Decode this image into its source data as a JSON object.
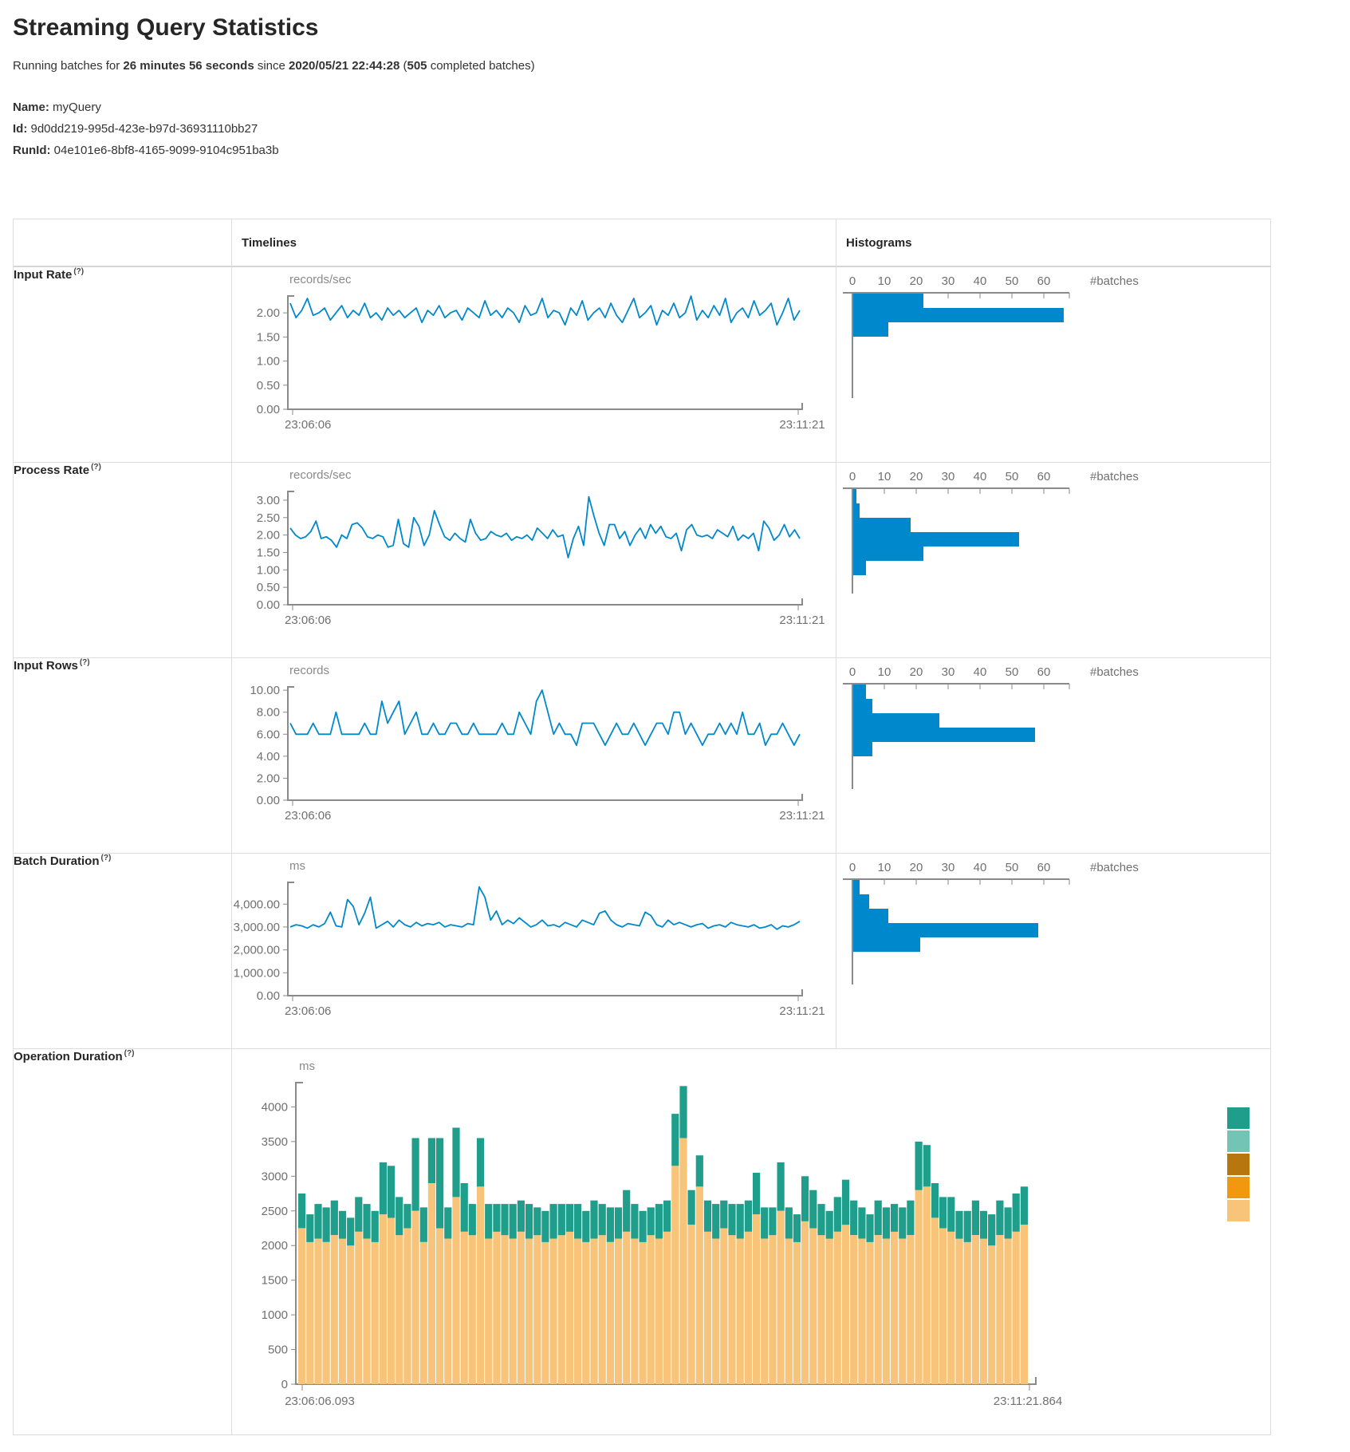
{
  "page": {
    "title": "Streaming Query Statistics",
    "subtitle": {
      "p1": "Running batches for ",
      "b1": "26 minutes 56 seconds",
      "p2": " since ",
      "b2": "2020/05/21 22:44:28",
      "p3": " (",
      "b3": "505",
      "p4": " completed batches)"
    },
    "meta": {
      "name_label": "Name:",
      "name": " myQuery",
      "id_label": "Id:",
      "id": " 9d0dd219-995d-423e-b97d-36931110bb27",
      "runid_label": "RunId:",
      "runid": " 04e101e6-8bf8-4165-9099-9104c951ba3b"
    }
  },
  "table": {
    "headers": {
      "timelines": "Timelines",
      "histograms": "Histograms"
    },
    "rows": [
      {
        "label": "Input Rate",
        "help": "(?)"
      },
      {
        "label": "Process Rate",
        "help": "(?)"
      },
      {
        "label": "Input Rows",
        "help": "(?)"
      },
      {
        "label": "Batch Duration",
        "help": "(?)"
      },
      {
        "label": "Operation Duration",
        "help": "(?)"
      }
    ]
  },
  "colors": {
    "line_blue": "#0088CC",
    "hist_blue": "#0088CC",
    "axis": "#8A8A8A",
    "tick_label": "#707070",
    "border": "#DDDDDD",
    "legend": [
      "#1E9E8B",
      "#74C4B5",
      "#B8770E",
      "#F2980F",
      "#F7C479"
    ]
  },
  "chart_data": [
    {
      "row": "Input Rate",
      "timeline": {
        "type": "line",
        "unit": "records/sec",
        "x_start": "23:06:06",
        "x_end": "23:11:21",
        "yticks": [
          0,
          0.5,
          1,
          1.5,
          2
        ],
        "fmt": "2dp",
        "ymax": 2.35,
        "values": [
          2.2,
          1.9,
          2.05,
          2.3,
          1.95,
          2.0,
          2.1,
          1.85,
          2.0,
          2.15,
          1.9,
          2.05,
          1.95,
          2.2,
          1.9,
          2.0,
          1.85,
          2.1,
          1.95,
          2.05,
          1.9,
          2.0,
          2.1,
          1.8,
          2.05,
          1.95,
          2.15,
          1.9,
          2.0,
          2.05,
          1.85,
          2.1,
          2.0,
          1.9,
          2.25,
          1.95,
          2.05,
          1.9,
          2.1,
          2.0,
          1.8,
          2.15,
          1.95,
          2.0,
          2.3,
          1.9,
          2.05,
          2.0,
          1.75,
          2.1,
          1.95,
          2.25,
          1.85,
          2.0,
          2.1,
          1.9,
          2.2,
          1.95,
          1.8,
          2.05,
          2.3,
          1.9,
          2.0,
          2.15,
          1.75,
          2.05,
          1.95,
          2.2,
          1.9,
          2.0,
          2.35,
          1.85,
          2.05,
          1.9,
          2.15,
          1.95,
          2.3,
          1.8,
          2.0,
          2.1,
          1.9,
          2.25,
          1.95,
          2.05,
          2.2,
          1.75,
          2.0,
          2.3,
          1.85,
          2.05
        ]
      },
      "histogram": {
        "type": "bar",
        "orientation": "horizontal",
        "xlabel": "#batches",
        "xticks": [
          0,
          10,
          20,
          30,
          40,
          50,
          60
        ],
        "xmax": 70,
        "values": [
          22,
          66,
          11
        ]
      }
    },
    {
      "row": "Process Rate",
      "timeline": {
        "type": "line",
        "unit": "records/sec",
        "x_start": "23:06:06",
        "x_end": "23:11:21",
        "yticks": [
          0,
          0.5,
          1,
          1.5,
          2,
          2.5,
          3
        ],
        "fmt": "2dp",
        "ymax": 3.25,
        "values": [
          2.2,
          2.0,
          1.9,
          1.95,
          2.1,
          2.4,
          1.9,
          1.95,
          1.85,
          1.65,
          2.0,
          1.9,
          2.3,
          2.35,
          2.2,
          1.95,
          1.9,
          2.0,
          1.95,
          1.65,
          1.7,
          2.45,
          1.75,
          1.65,
          2.5,
          2.25,
          1.7,
          2.0,
          2.7,
          2.3,
          1.95,
          1.85,
          2.05,
          1.9,
          1.8,
          2.45,
          2.05,
          1.85,
          1.9,
          2.1,
          2.0,
          1.95,
          2.05,
          1.85,
          1.95,
          1.9,
          2.0,
          1.85,
          2.2,
          2.05,
          1.9,
          2.15,
          1.95,
          2.0,
          1.35,
          1.9,
          2.25,
          1.7,
          3.1,
          2.55,
          2.05,
          1.7,
          2.3,
          2.3,
          1.9,
          2.1,
          1.7,
          2.0,
          2.2,
          1.9,
          2.3,
          2.05,
          2.25,
          1.95,
          1.9,
          2.05,
          1.55,
          2.15,
          2.3,
          2.0,
          1.95,
          2.0,
          1.9,
          2.15,
          2.05,
          1.95,
          2.25,
          1.85,
          2.0,
          1.9,
          2.05,
          1.55,
          2.4,
          2.2,
          1.85,
          2.0,
          2.3,
          1.95,
          2.15,
          1.9
        ]
      },
      "histogram": {
        "type": "bar",
        "orientation": "horizontal",
        "xlabel": "#batches",
        "xticks": [
          0,
          10,
          20,
          30,
          40,
          50,
          60
        ],
        "xmax": 70,
        "values": [
          1,
          2,
          18,
          52,
          22,
          4
        ]
      }
    },
    {
      "row": "Input Rows",
      "timeline": {
        "type": "line",
        "unit": "records",
        "x_start": "23:06:06",
        "x_end": "23:11:21",
        "yticks": [
          0,
          2,
          4,
          6,
          8,
          10
        ],
        "fmt": "2dp",
        "ymax": 10.3,
        "values": [
          7,
          6,
          6,
          6,
          7,
          6,
          6,
          6,
          8,
          6,
          6,
          6,
          6,
          7,
          6,
          6,
          9,
          7,
          8,
          9,
          6,
          7,
          8,
          6,
          6,
          7,
          6,
          6,
          7,
          7,
          6,
          6,
          7,
          6,
          6,
          6,
          6,
          7,
          6,
          6,
          8,
          7,
          6,
          9,
          10,
          8,
          6,
          7,
          6,
          6,
          5,
          7,
          7,
          7,
          6,
          5,
          6,
          7,
          6,
          6,
          7,
          6,
          5,
          6,
          7,
          7,
          6,
          8,
          8,
          6,
          7,
          6,
          5,
          6,
          6,
          7,
          6,
          7,
          6,
          8,
          6,
          6,
          7,
          5,
          6,
          6,
          7,
          6,
          5,
          6
        ]
      },
      "histogram": {
        "type": "bar",
        "orientation": "horizontal",
        "xlabel": "#batches",
        "xticks": [
          0,
          10,
          20,
          30,
          40,
          50,
          60
        ],
        "xmax": 70,
        "values": [
          4,
          6,
          27,
          57,
          6
        ]
      }
    },
    {
      "row": "Batch Duration",
      "timeline": {
        "type": "line",
        "unit": "ms",
        "x_start": "23:06:06",
        "x_end": "23:11:21",
        "yticks": [
          0,
          1000,
          2000,
          3000,
          4000
        ],
        "fmt": "thousands",
        "ymax": 4950,
        "values": [
          3000,
          3100,
          3050,
          2950,
          3100,
          3000,
          3150,
          3650,
          3050,
          3000,
          4200,
          3900,
          3100,
          3600,
          4300,
          2950,
          3100,
          3250,
          3000,
          3300,
          3100,
          3000,
          3200,
          3050,
          3150,
          3100,
          3200,
          3000,
          3100,
          3050,
          3000,
          3150,
          3100,
          4750,
          4300,
          3300,
          3700,
          3100,
          3300,
          3150,
          3400,
          3200,
          3000,
          3100,
          3300,
          3050,
          3100,
          3000,
          3200,
          3100,
          3000,
          3300,
          3200,
          3100,
          3600,
          3700,
          3300,
          3100,
          3000,
          3150,
          3100,
          3050,
          3650,
          3500,
          3100,
          3000,
          3300,
          3100,
          3200,
          3100,
          3000,
          3100,
          3150,
          2950,
          3050,
          3100,
          3000,
          3200,
          3100,
          3050,
          3000,
          3100,
          2950,
          3000,
          3100,
          2900,
          3050,
          3000,
          3100,
          3250
        ]
      },
      "histogram": {
        "type": "bar",
        "orientation": "horizontal",
        "xlabel": "#batches",
        "xticks": [
          0,
          10,
          20,
          30,
          40,
          50,
          60
        ],
        "xmax": 70,
        "values": [
          2,
          5,
          11,
          58,
          21
        ]
      }
    },
    {
      "row": "Operation Duration",
      "timeline": {
        "type": "stacked-bar",
        "unit": "ms",
        "x_start": "23:06:06.093",
        "x_end": "23:11:21.864",
        "yticks": [
          0,
          500,
          1000,
          1500,
          2000,
          2500,
          3000,
          3500,
          4000
        ],
        "fmt": "int",
        "ymax": 4350,
        "series": [
          {
            "name": "bottom",
            "color": "#F7C479",
            "values": [
              2250,
              2050,
              2100,
              2050,
              2150,
              2100,
              2000,
              2200,
              2100,
              2050,
              2450,
              2400,
              2150,
              2250,
              2500,
              2050,
              2900,
              2250,
              2100,
              2700,
              2200,
              2150,
              2850,
              2100,
              2200,
              2150,
              2100,
              2200,
              2100,
              2150,
              2050,
              2100,
              2150,
              2200,
              2100,
              2050,
              2100,
              2150,
              2050,
              2100,
              2200,
              2100,
              2050,
              2150,
              2100,
              2200,
              3150,
              3550,
              2300,
              2850,
              2200,
              2100,
              2250,
              2150,
              2100,
              2200,
              2450,
              2100,
              2150,
              2500,
              2100,
              2050,
              2350,
              2250,
              2150,
              2100,
              2200,
              2300,
              2150,
              2100,
              2050,
              2150,
              2100,
              2200,
              2100,
              2150,
              2800,
              2850,
              2400,
              2250,
              2200,
              2100,
              2050,
              2150,
              2100,
              2000,
              2150,
              2100,
              2200,
              2300
            ]
          },
          {
            "name": "top",
            "color": "#1E9E8B",
            "values": [
              500,
              400,
              500,
              500,
              500,
              400,
              400,
              500,
              500,
              450,
              750,
              750,
              550,
              350,
              1050,
              500,
              650,
              1300,
              450,
              1000,
              700,
              450,
              700,
              500,
              400,
              450,
              500,
              450,
              500,
              400,
              450,
              500,
              450,
              400,
              500,
              450,
              550,
              450,
              500,
              450,
              600,
              500,
              450,
              400,
              500,
              450,
              750,
              750,
              500,
              450,
              450,
              500,
              400,
              450,
              500,
              450,
              600,
              450,
              400,
              700,
              450,
              400,
              650,
              550,
              450,
              400,
              500,
              650,
              500,
              450,
              400,
              500,
              450,
              400,
              450,
              500,
              700,
              600,
              500,
              450,
              500,
              400,
              450,
              500,
              400,
              450,
              500,
              450,
              550,
              550
            ]
          }
        ]
      },
      "legend_colors": [
        "#1E9E8B",
        "#74C4B5",
        "#B8770E",
        "#F2980F",
        "#F7C479"
      ]
    }
  ]
}
